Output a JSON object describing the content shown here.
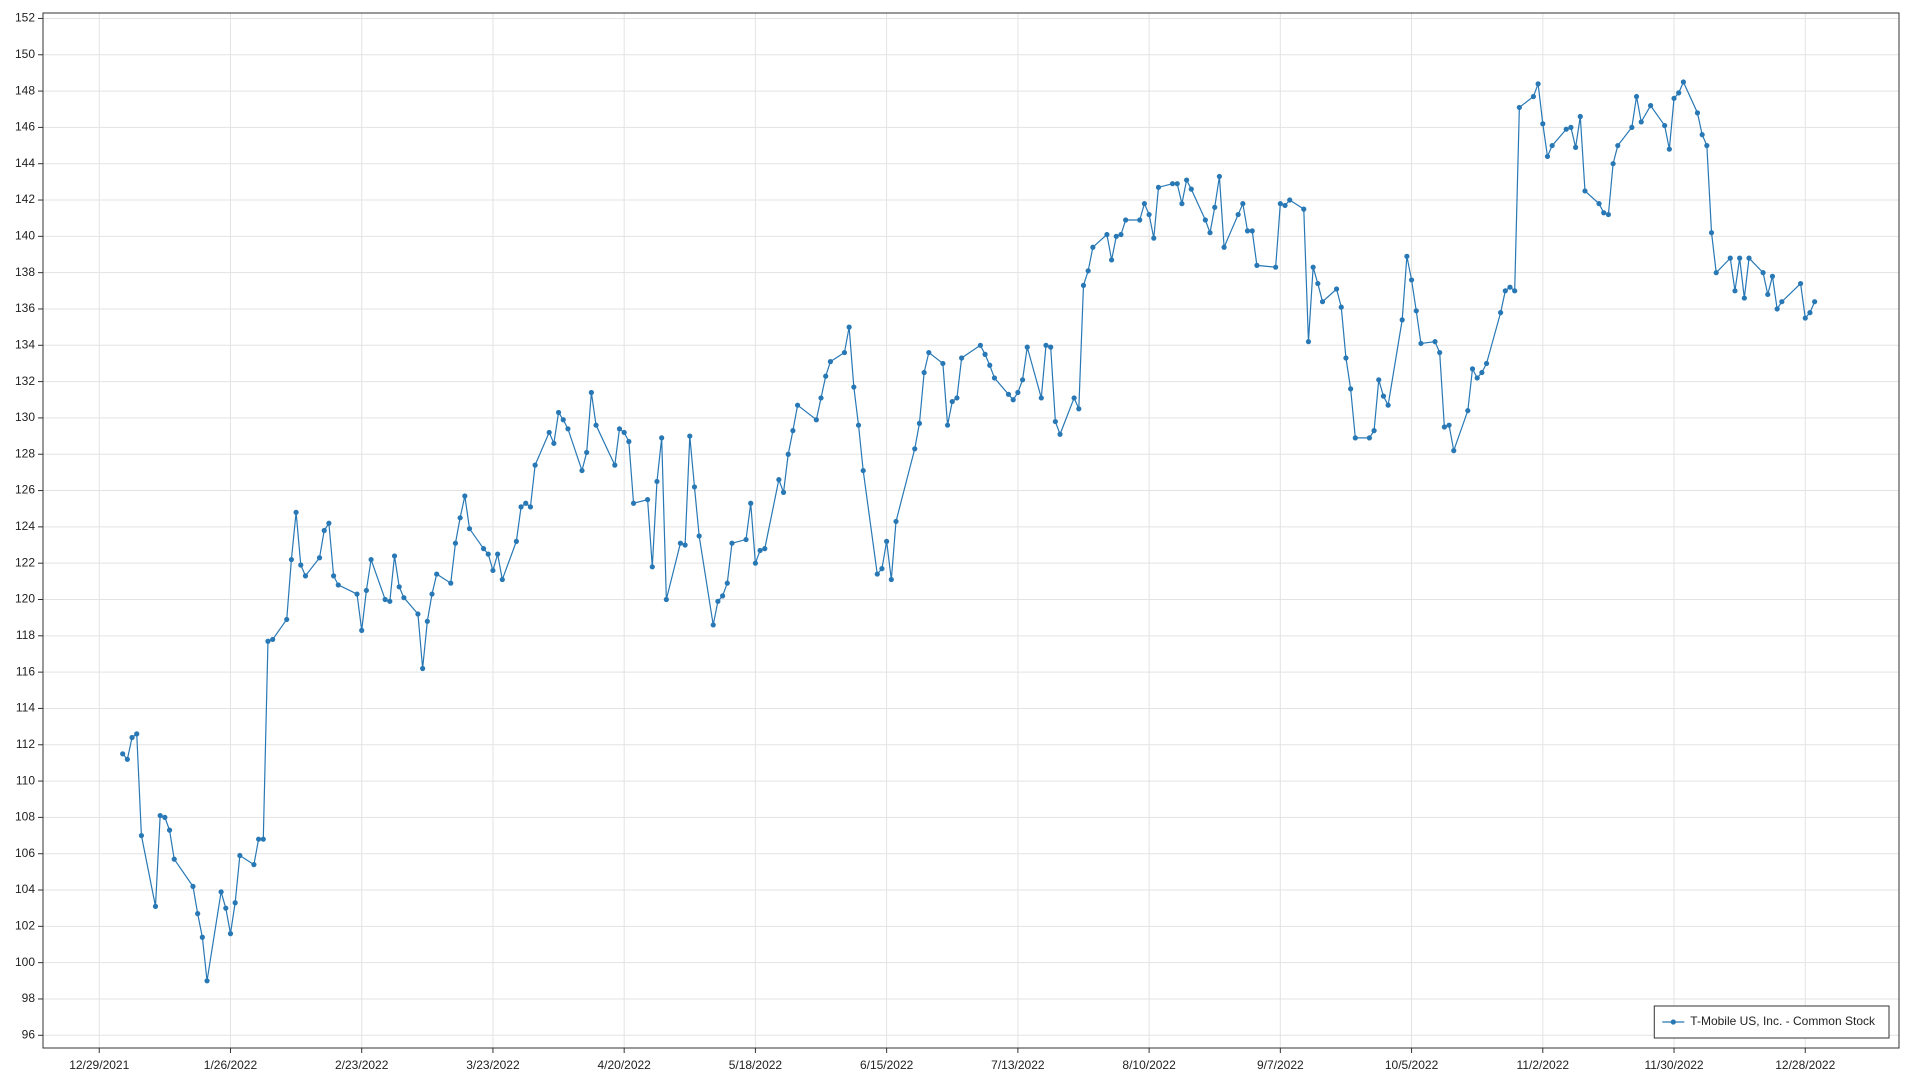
{
  "chart_data": {
    "type": "line",
    "color": "#2878b5",
    "grid": true,
    "legend": "lower right",
    "xlim": [
      "12/17/2021",
      "1/17/2023"
    ],
    "xticks": [
      "12/29/2021",
      "1/26/2022",
      "2/23/2022",
      "3/23/2022",
      "4/20/2022",
      "5/18/2022",
      "6/15/2022",
      "7/13/2022",
      "8/10/2022",
      "9/7/2022",
      "10/5/2022",
      "11/2/2022",
      "11/30/2022",
      "12/28/2022"
    ],
    "ylim": [
      95.3,
      152.3
    ],
    "yticks": [
      96,
      98,
      100,
      102,
      104,
      106,
      108,
      110,
      112,
      114,
      116,
      118,
      120,
      122,
      124,
      126,
      128,
      130,
      132,
      134,
      136,
      138,
      140,
      142,
      144,
      146,
      148,
      150,
      152
    ],
    "x": [
      "1/3/2022",
      "1/4/2022",
      "1/5/2022",
      "1/6/2022",
      "1/7/2022",
      "1/10/2022",
      "1/11/2022",
      "1/12/2022",
      "1/13/2022",
      "1/14/2022",
      "1/18/2022",
      "1/19/2022",
      "1/20/2022",
      "1/21/2022",
      "1/24/2022",
      "1/25/2022",
      "1/26/2022",
      "1/27/2022",
      "1/28/2022",
      "1/31/2022",
      "2/1/2022",
      "2/2/2022",
      "2/3/2022",
      "2/4/2022",
      "2/7/2022",
      "2/8/2022",
      "2/9/2022",
      "2/10/2022",
      "2/11/2022",
      "2/14/2022",
      "2/15/2022",
      "2/16/2022",
      "2/17/2022",
      "2/18/2022",
      "2/22/2022",
      "2/23/2022",
      "2/24/2022",
      "2/25/2022",
      "2/28/2022",
      "3/1/2022",
      "3/2/2022",
      "3/3/2022",
      "3/4/2022",
      "3/7/2022",
      "3/8/2022",
      "3/9/2022",
      "3/10/2022",
      "3/11/2022",
      "3/14/2022",
      "3/15/2022",
      "3/16/2022",
      "3/17/2022",
      "3/18/2022",
      "3/21/2022",
      "3/22/2022",
      "3/23/2022",
      "3/24/2022",
      "3/25/2022",
      "3/28/2022",
      "3/29/2022",
      "3/30/2022",
      "3/31/2022",
      "4/1/2022",
      "4/4/2022",
      "4/5/2022",
      "4/6/2022",
      "4/7/2022",
      "4/8/2022",
      "4/11/2022",
      "4/12/2022",
      "4/13/2022",
      "4/14/2022",
      "4/18/2022",
      "4/19/2022",
      "4/20/2022",
      "4/21/2022",
      "4/22/2022",
      "4/25/2022",
      "4/26/2022",
      "4/27/2022",
      "4/28/2022",
      "4/29/2022",
      "5/2/2022",
      "5/3/2022",
      "5/4/2022",
      "5/5/2022",
      "5/6/2022",
      "5/9/2022",
      "5/10/2022",
      "5/11/2022",
      "5/12/2022",
      "5/13/2022",
      "5/16/2022",
      "5/17/2022",
      "5/18/2022",
      "5/19/2022",
      "5/20/2022",
      "5/23/2022",
      "5/24/2022",
      "5/25/2022",
      "5/26/2022",
      "5/27/2022",
      "5/31/2022",
      "6/1/2022",
      "6/2/2022",
      "6/3/2022",
      "6/6/2022",
      "6/7/2022",
      "6/8/2022",
      "6/9/2022",
      "6/10/2022",
      "6/13/2022",
      "6/14/2022",
      "6/15/2022",
      "6/16/2022",
      "6/17/2022",
      "6/21/2022",
      "6/22/2022",
      "6/23/2022",
      "6/24/2022",
      "6/27/2022",
      "6/28/2022",
      "6/29/2022",
      "6/30/2022",
      "7/1/2022",
      "7/5/2022",
      "7/6/2022",
      "7/7/2022",
      "7/8/2022",
      "7/11/2022",
      "7/12/2022",
      "7/13/2022",
      "7/14/2022",
      "7/15/2022",
      "7/18/2022",
      "7/19/2022",
      "7/20/2022",
      "7/21/2022",
      "7/22/2022",
      "7/25/2022",
      "7/26/2022",
      "7/27/2022",
      "7/28/2022",
      "7/29/2022",
      "8/1/2022",
      "8/2/2022",
      "8/3/2022",
      "8/4/2022",
      "8/5/2022",
      "8/8/2022",
      "8/9/2022",
      "8/10/2022",
      "8/11/2022",
      "8/12/2022",
      "8/15/2022",
      "8/16/2022",
      "8/17/2022",
      "8/18/2022",
      "8/19/2022",
      "8/22/2022",
      "8/23/2022",
      "8/24/2022",
      "8/25/2022",
      "8/26/2022",
      "8/29/2022",
      "8/30/2022",
      "8/31/2022",
      "9/1/2022",
      "9/2/2022",
      "9/6/2022",
      "9/7/2022",
      "9/8/2022",
      "9/9/2022",
      "9/12/2022",
      "9/13/2022",
      "9/14/2022",
      "9/15/2022",
      "9/16/2022",
      "9/19/2022",
      "9/20/2022",
      "9/21/2022",
      "9/22/2022",
      "9/23/2022",
      "9/26/2022",
      "9/27/2022",
      "9/28/2022",
      "9/29/2022",
      "9/30/2022",
      "10/3/2022",
      "10/4/2022",
      "10/5/2022",
      "10/6/2022",
      "10/7/2022",
      "10/10/2022",
      "10/11/2022",
      "10/12/2022",
      "10/13/2022",
      "10/14/2022",
      "10/17/2022",
      "10/18/2022",
      "10/19/2022",
      "10/20/2022",
      "10/21/2022",
      "10/24/2022",
      "10/25/2022",
      "10/26/2022",
      "10/27/2022",
      "10/28/2022",
      "10/31/2022",
      "11/1/2022",
      "11/2/2022",
      "11/3/2022",
      "11/4/2022",
      "11/7/2022",
      "11/8/2022",
      "11/9/2022",
      "11/10/2022",
      "11/11/2022",
      "11/14/2022",
      "11/15/2022",
      "11/16/2022",
      "11/17/2022",
      "11/18/2022",
      "11/21/2022",
      "11/22/2022",
      "11/23/2022",
      "11/25/2022",
      "11/28/2022",
      "11/29/2022",
      "11/30/2022",
      "12/1/2022",
      "12/2/2022",
      "12/5/2022",
      "12/6/2022",
      "12/7/2022",
      "12/8/2022",
      "12/9/2022",
      "12/12/2022",
      "12/13/2022",
      "12/14/2022",
      "12/15/2022",
      "12/16/2022",
      "12/19/2022",
      "12/20/2022",
      "12/21/2022",
      "12/22/2022",
      "12/23/2022",
      "12/27/2022",
      "12/28/2022",
      "12/29/2022",
      "12/30/2022"
    ],
    "series": [
      {
        "name": "T-Mobile US, Inc. - Common Stock",
        "color": "#2878b5",
        "values": [
          111.5,
          111.2,
          112.4,
          112.6,
          107.0,
          103.1,
          108.1,
          108.0,
          107.3,
          105.7,
          104.2,
          102.7,
          101.4,
          99.0,
          103.9,
          103.0,
          101.6,
          103.3,
          105.9,
          105.4,
          106.8,
          106.8,
          117.7,
          117.8,
          118.9,
          122.2,
          124.8,
          121.9,
          121.3,
          122.3,
          123.8,
          124.2,
          121.3,
          120.8,
          120.3,
          118.3,
          120.5,
          122.2,
          120.0,
          119.9,
          122.4,
          120.7,
          120.1,
          119.2,
          116.2,
          118.8,
          120.3,
          121.4,
          120.9,
          123.1,
          124.5,
          125.7,
          123.9,
          122.8,
          122.5,
          121.6,
          122.5,
          121.1,
          123.2,
          125.1,
          125.3,
          125.1,
          127.4,
          129.2,
          128.6,
          130.3,
          129.9,
          129.4,
          127.1,
          128.1,
          131.4,
          129.6,
          127.4,
          129.4,
          129.2,
          128.7,
          125.3,
          125.5,
          121.8,
          126.5,
          128.9,
          120.0,
          123.1,
          123.0,
          129.0,
          126.2,
          123.5,
          118.6,
          119.9,
          120.2,
          120.9,
          123.1,
          123.3,
          125.3,
          122.0,
          122.7,
          122.8,
          126.6,
          125.9,
          128.0,
          129.3,
          130.7,
          129.9,
          131.1,
          132.3,
          133.1,
          133.6,
          135.0,
          131.7,
          129.6,
          127.1,
          121.4,
          121.7,
          123.2,
          121.1,
          124.3,
          128.3,
          129.7,
          132.5,
          133.6,
          133.0,
          129.6,
          130.9,
          131.1,
          133.3,
          134.0,
          133.5,
          132.9,
          132.2,
          131.3,
          131.0,
          131.4,
          132.1,
          133.9,
          131.1,
          134.0,
          133.9,
          129.8,
          129.1,
          131.1,
          130.5,
          137.3,
          138.1,
          139.4,
          140.1,
          138.7,
          140.0,
          140.1,
          140.9,
          140.9,
          141.8,
          141.2,
          139.9,
          142.7,
          142.9,
          142.9,
          141.8,
          143.1,
          142.6,
          140.9,
          140.2,
          141.6,
          143.3,
          139.4,
          141.2,
          141.8,
          140.3,
          140.3,
          138.4,
          138.3,
          141.8,
          141.7,
          142.0,
          141.5,
          134.2,
          138.3,
          137.4,
          136.4,
          137.1,
          136.1,
          133.3,
          131.6,
          128.9,
          128.9,
          129.3,
          132.1,
          131.2,
          130.7,
          135.4,
          138.9,
          137.6,
          135.9,
          134.1,
          134.2,
          133.6,
          129.5,
          129.6,
          128.2,
          130.4,
          132.7,
          132.2,
          132.5,
          133.0,
          135.8,
          137.0,
          137.2,
          137.0,
          147.1,
          147.7,
          148.4,
          146.2,
          144.4,
          145.0,
          145.9,
          146.0,
          144.9,
          146.6,
          142.5,
          141.8,
          141.3,
          141.2,
          144.0,
          145.0,
          146.0,
          147.7,
          146.3,
          147.2,
          146.1,
          144.8,
          147.6,
          147.9,
          148.5,
          146.8,
          145.6,
          145.0,
          140.2,
          138.0,
          138.8,
          137.0,
          138.8,
          136.6,
          138.8,
          138.0,
          136.8,
          137.8,
          136.0,
          136.4,
          137.4,
          135.5,
          135.8,
          136.4
        ]
      }
    ]
  }
}
